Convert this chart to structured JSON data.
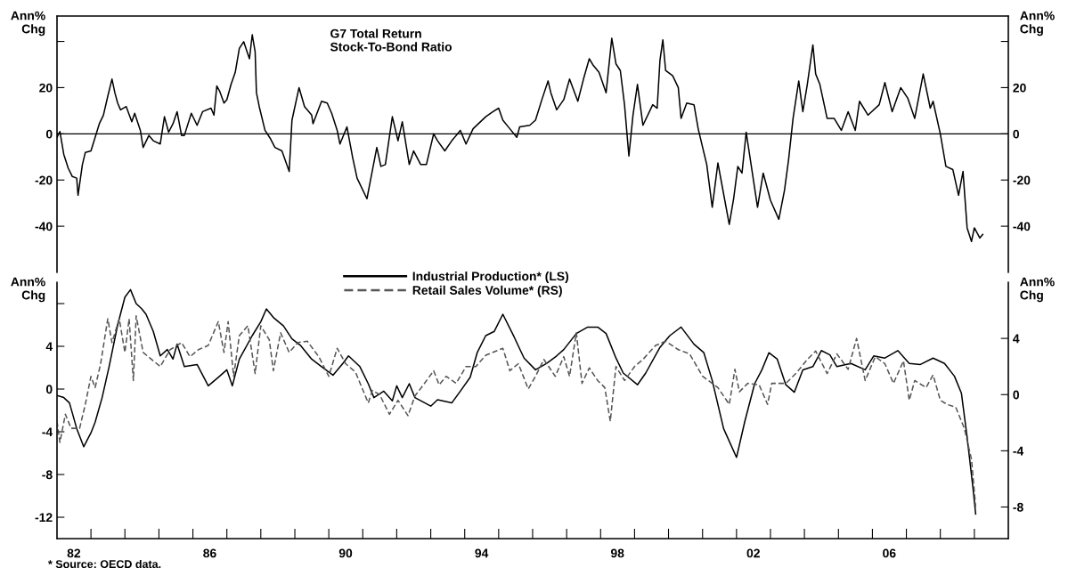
{
  "chart_data": [
    {
      "type": "line",
      "title": "G7 Total Return\nStock-To-Bond Ratio",
      "ylabel": "Ann%\nChg",
      "y2label": "Ann%\nChg",
      "tick_labels": "y",
      "xlim": [
        "1982-01-01",
        "2010-01-01"
      ],
      "ylim": [
        -60,
        51
      ],
      "yticks": [
        -40,
        -20,
        0,
        20,
        {
          "value": 40,
          "label": null
        }
      ],
      "y2lim": [
        -60,
        51
      ],
      "y2ticks": [
        -40,
        -20,
        0,
        20,
        {
          "value": 40,
          "label": null
        }
      ],
      "ref_lines": [
        {
          "axis": "y",
          "value": 0,
          "label": null,
          "color": "#000000"
        }
      ],
      "series": [
        {
          "color": "#000000",
          "line_style": "solid",
          "x": [
            "1982-01-01",
            "1982-02-01",
            "1982-03-15",
            "1982-05-01",
            "1982-06-15",
            "1982-08-01",
            "1982-08-15",
            "1982-10-01",
            "1982-11-01",
            "1983-01-01",
            "1983-02-15",
            "1983-04-01",
            "1983-05-15",
            "1983-07-01",
            "1983-08-15",
            "1983-09-15",
            "1983-10-15",
            "1983-11-15",
            "1984-01-15",
            "1984-03-15",
            "1984-04-15",
            "1984-06-15",
            "1984-07-15",
            "1984-09-15",
            "1984-11-01",
            "1985-01-15",
            "1985-03-01",
            "1985-04-15",
            "1985-06-01",
            "1985-07-15",
            "1985-09-01",
            "1985-10-01",
            "1985-12-15",
            "1986-02-15",
            "1986-04-15",
            "1986-07-15",
            "1986-08-15",
            "1986-09-15",
            "1986-10-15",
            "1986-12-01",
            "1987-01-01",
            "1987-02-15",
            "1987-04-01",
            "1987-05-15",
            "1987-07-01",
            "1987-08-01",
            "1987-09-01",
            "1987-10-01",
            "1987-11-01",
            "1987-11-15",
            "1987-12-15",
            "1988-02-15",
            "1988-04-15",
            "1988-06-01",
            "1988-08-15",
            "1988-11-01",
            "1988-12-01",
            "1989-02-15",
            "1989-04-15",
            "1989-07-01",
            "1989-07-15",
            "1989-10-15",
            "1989-12-15",
            "1990-02-01",
            "1990-04-01",
            "1990-05-01",
            "1990-07-15",
            "1990-09-15",
            "1990-11-01",
            "1991-02-15",
            "1991-03-15",
            "1991-06-01",
            "1991-07-15",
            "1991-09-01",
            "1991-11-15",
            "1992-01-15",
            "1992-03-01",
            "1992-05-15",
            "1992-07-01",
            "1992-09-15",
            "1992-11-15",
            "1993-02-01",
            "1993-03-15",
            "1993-06-01",
            "1993-08-15",
            "1993-11-15",
            "1994-01-15",
            "1994-04-01",
            "1994-08-15",
            "1994-11-01",
            "1995-01-01",
            "1995-02-15",
            "1995-05-01",
            "1995-07-15",
            "1995-08-15",
            "1995-12-01",
            "1996-02-01",
            "1996-04-15",
            "1996-06-15",
            "1996-07-15",
            "1996-09-15",
            "1996-12-01",
            "1997-02-01",
            "1997-05-01",
            "1997-07-01",
            "1997-09-01",
            "1997-10-15",
            "1997-12-15",
            "1998-03-01",
            "1998-05-01",
            "1998-06-15",
            "1998-08-01",
            "1998-09-15",
            "1998-11-01",
            "1998-12-15",
            "1999-02-01",
            "1999-04-01",
            "1999-07-15",
            "1999-09-01",
            "1999-10-01",
            "1999-11-01",
            "1999-12-01",
            "2000-02-15",
            "2000-04-15",
            "2000-05-15",
            "2000-07-15",
            "2000-10-01",
            "2000-11-15",
            "2001-01-15",
            "2001-02-15",
            "2001-04-15",
            "2001-06-15",
            "2001-08-01",
            "2001-10-15",
            "2001-12-01",
            "2002-01-15",
            "2002-03-01",
            "2002-04-15",
            "2002-06-15",
            "2002-08-15",
            "2002-10-15",
            "2003-01-01",
            "2003-04-01",
            "2003-06-01",
            "2003-07-15",
            "2003-09-01",
            "2003-11-01",
            "2003-12-15",
            "2004-02-01",
            "2004-04-01",
            "2004-05-01",
            "2004-06-15",
            "2004-09-01",
            "2004-11-15",
            "2005-02-01",
            "2005-04-15",
            "2005-07-01",
            "2005-08-15",
            "2005-11-15",
            "2006-03-15",
            "2006-05-15",
            "2006-08-01",
            "2006-11-01",
            "2007-01-15",
            "2007-04-01",
            "2007-07-01",
            "2007-09-15",
            "2007-10-15",
            "2008-01-01",
            "2008-03-01",
            "2008-05-15",
            "2008-07-15",
            "2008-09-01",
            "2008-10-15",
            "2008-12-01",
            "2009-01-01",
            "2009-03-01",
            "2009-04-01"
          ],
          "values": [
            -1.5,
            1.0,
            -8.9,
            -14.8,
            -18.5,
            -19.2,
            -26.6,
            -13.3,
            -8.1,
            -7.4,
            -1.5,
            4.4,
            8.1,
            16.3,
            23.7,
            17.8,
            13.3,
            10.4,
            11.8,
            5.2,
            8.9,
            1.5,
            -5.9,
            -0.7,
            -3.0,
            -4.4,
            7.4,
            0.7,
            4.4,
            9.6,
            -0.7,
            -0.7,
            8.9,
            3.7,
            9.6,
            11.1,
            8.1,
            20.7,
            18.5,
            13.3,
            14.8,
            21.4,
            26.6,
            37.0,
            39.9,
            36.2,
            32.5,
            42.9,
            35.5,
            17.8,
            11.8,
            1.5,
            -2.2,
            -5.9,
            -7.4,
            -16.3,
            5.9,
            20.0,
            11.8,
            8.1,
            4.4,
            14.1,
            13.3,
            8.9,
            1.5,
            -4.4,
            3.0,
            -10.4,
            -19.2,
            -28.1,
            -22.2,
            -5.9,
            -14.1,
            -13.3,
            7.4,
            -3.0,
            5.2,
            -13.3,
            -7.4,
            -13.3,
            -13.3,
            0,
            -3.0,
            -7.4,
            -3.0,
            1.5,
            -4.4,
            2.2,
            7.4,
            9.6,
            11.1,
            5.9,
            2.2,
            -1.5,
            3.0,
            3.7,
            5.9,
            15.5,
            22.9,
            17.8,
            10.4,
            14.8,
            23.7,
            14.1,
            23.7,
            32.5,
            29.6,
            26.6,
            17.8,
            41.4,
            30.3,
            27.4,
            12.6,
            -9.6,
            8.1,
            21.4,
            3.7,
            12.6,
            11.1,
            31.8,
            40.7,
            27.4,
            25.1,
            20.0,
            6.7,
            13.3,
            12.6,
            2.2,
            -8.1,
            -13.3,
            -31.8,
            -12.6,
            -22.9,
            -39.2,
            -28.1,
            -14.1,
            -17.0,
            0.7,
            -15.5,
            -31.8,
            -17.0,
            -28.8,
            -37.0,
            -24.4,
            -11.1,
            6.7,
            22.9,
            9.6,
            21.4,
            38.5,
            25.9,
            21.4,
            6.7,
            6.7,
            1.5,
            9.6,
            1.5,
            14.1,
            8.1,
            12.6,
            22.2,
            9.6,
            20.0,
            15.5,
            6.7,
            25.9,
            11.1,
            14.1,
            0,
            -14.1,
            -15.5,
            -26.6,
            -16.3,
            -40.7,
            -46.6,
            -40.7,
            -45.1,
            -43.6
          ]
        }
      ]
    },
    {
      "type": "line",
      "ylabel": "Ann%\nChg",
      "y2label": "Ann%\nChg",
      "legend": "top",
      "xlim": [
        "1982-01-01",
        "2010-01-01"
      ],
      "ylim": [
        -14,
        10
      ],
      "yticks": [
        -12,
        -8,
        -4,
        0,
        4,
        {
          "value": 8,
          "label": null
        }
      ],
      "y2lim": [
        -10.25,
        8
      ],
      "y2ticks": [
        -8,
        -4,
        0,
        4
      ],
      "xticks": [
        {
          "value": "1982-07-01",
          "label": "82"
        },
        {
          "value": "1986-07-01",
          "label": "86"
        },
        {
          "value": "1990-07-01",
          "label": "90"
        },
        {
          "value": "1994-07-01",
          "label": "94"
        },
        {
          "value": "1998-07-01",
          "label": "98"
        },
        {
          "value": "2002-07-01",
          "label": "02"
        },
        {
          "value": "2006-07-01",
          "label": "06"
        },
        {
          "value": "1983-01-01",
          "label": null
        },
        {
          "value": "1984-01-01",
          "label": null
        },
        {
          "value": "1985-01-01",
          "label": null
        },
        {
          "value": "1986-01-01",
          "label": null
        },
        {
          "value": "1987-01-01",
          "label": null
        },
        {
          "value": "1988-01-01",
          "label": null
        },
        {
          "value": "1989-01-01",
          "label": null
        },
        {
          "value": "1990-01-01",
          "label": null
        },
        {
          "value": "1991-01-01",
          "label": null
        },
        {
          "value": "1992-01-01",
          "label": null
        },
        {
          "value": "1993-01-01",
          "label": null
        },
        {
          "value": "1994-01-01",
          "label": null
        },
        {
          "value": "1995-01-01",
          "label": null
        },
        {
          "value": "1996-01-01",
          "label": null
        },
        {
          "value": "1997-01-01",
          "label": null
        },
        {
          "value": "1998-01-01",
          "label": null
        },
        {
          "value": "1999-01-01",
          "label": null
        },
        {
          "value": "2000-01-01",
          "label": null
        },
        {
          "value": "2001-01-01",
          "label": null
        },
        {
          "value": "2002-01-01",
          "label": null
        },
        {
          "value": "2003-01-01",
          "label": null
        },
        {
          "value": "2004-01-01",
          "label": null
        },
        {
          "value": "2005-01-01",
          "label": null
        },
        {
          "value": "2006-01-01",
          "label": null
        },
        {
          "value": "2007-01-01",
          "label": null
        },
        {
          "value": "2008-01-01",
          "label": null
        },
        {
          "value": "2009-01-01",
          "label": null
        }
      ],
      "annotations": [
        "* Source: OECD data."
      ],
      "series": [
        {
          "name": "Industrial Production* (LS)",
          "color": "#000000",
          "line_style": "solid",
          "x": [
            "1982-01-01",
            "1982-03-15",
            "1982-05-15",
            "1982-08-01",
            "1982-10-15",
            "1983-01-01",
            "1983-02-15",
            "1983-05-01",
            "1983-07-15",
            "1983-10-15",
            "1984-01-01",
            "1984-03-01",
            "1984-05-01",
            "1984-07-01",
            "1984-08-15",
            "1984-11-01",
            "1985-01-15",
            "1985-04-01",
            "1985-06-01",
            "1985-07-15",
            "1985-10-01",
            "1986-02-15",
            "1986-06-15",
            "1986-10-01",
            "1987-01-01",
            "1987-03-01",
            "1987-05-15",
            "1987-10-01",
            "1988-01-01",
            "1988-03-01",
            "1988-05-15",
            "1988-09-01",
            "1988-12-01",
            "1989-03-01",
            "1989-07-01",
            "1989-10-15",
            "1990-02-15",
            "1990-06-01",
            "1990-08-01",
            "1990-12-01",
            "1991-03-01",
            "1991-05-01",
            "1991-08-15",
            "1991-11-15",
            "1992-01-01",
            "1992-03-01",
            "1992-05-15",
            "1992-07-15",
            "1993-01-01",
            "1993-03-15",
            "1993-08-15",
            "1993-11-15",
            "1994-03-01",
            "1994-05-15",
            "1994-08-15",
            "1994-11-15",
            "1995-02-15",
            "1995-06-15",
            "1995-10-01",
            "1996-02-01",
            "1996-06-01",
            "1996-09-15",
            "1996-12-01",
            "1997-04-15",
            "1997-08-15",
            "1997-12-01",
            "1998-03-01",
            "1998-06-15",
            "1998-09-01",
            "1999-02-01",
            "1999-05-01",
            "1999-10-01",
            "2000-01-15",
            "2000-05-15",
            "2000-10-01",
            "2001-01-15",
            "2001-04-15",
            "2001-08-15",
            "2002-01-01",
            "2002-04-01",
            "2002-07-15",
            "2002-10-01",
            "2002-12-15",
            "2003-03-15",
            "2003-06-15",
            "2003-09-15",
            "2003-12-15",
            "2004-04-01",
            "2004-07-01",
            "2004-10-01",
            "2004-12-15",
            "2005-05-15",
            "2005-10-15",
            "2006-01-15",
            "2006-05-15",
            "2006-10-01",
            "2007-02-01",
            "2007-06-01",
            "2007-10-15",
            "2008-02-15",
            "2008-06-01",
            "2008-08-15",
            "2008-10-15",
            "2008-12-15",
            "2009-01-15"
          ],
          "values": [
            -0.6,
            -0.8,
            -1.3,
            -3.7,
            -5.4,
            -4.1,
            -3.1,
            -0.8,
            2.1,
            6.0,
            8.6,
            9.3,
            8.0,
            7.5,
            7.0,
            5.4,
            3.1,
            3.7,
            2.8,
            4.2,
            2.1,
            2.3,
            0.3,
            1.1,
            1.8,
            0.3,
            2.8,
            5.0,
            6.3,
            7.5,
            6.7,
            5.9,
            4.7,
            4.1,
            2.8,
            2.1,
            1.3,
            2.4,
            3.1,
            2.1,
            0.5,
            -0.8,
            -0.2,
            -1.1,
            0.3,
            -0.8,
            0.5,
            -0.8,
            -1.6,
            -1.0,
            -1.3,
            -0.2,
            1.1,
            3.4,
            5.0,
            5.4,
            7.0,
            4.9,
            2.9,
            1.8,
            2.4,
            3.1,
            3.7,
            5.2,
            5.8,
            5.8,
            5.2,
            2.9,
            1.5,
            0.4,
            1.5,
            3.9,
            5.0,
            5.8,
            4.2,
            3.4,
            0.8,
            -3.7,
            -6.4,
            -3.0,
            0.5,
            1.8,
            3.4,
            2.8,
            0.4,
            -0.3,
            1.8,
            2.1,
            3.6,
            3.2,
            2.1,
            2.4,
            1.8,
            3.1,
            2.9,
            3.6,
            2.4,
            2.3,
            2.9,
            2.4,
            1.2,
            -0.4,
            -4.5,
            -9.1,
            -11.7
          ]
        },
        {
          "name": "Retail Sales Volume* (RS)",
          "color": "#555555",
          "line_style": "dashed",
          "axis": "y2",
          "x": [
            "1982-01-01",
            "1982-02-01",
            "1982-04-01",
            "1982-06-01",
            "1982-09-01",
            "1982-11-01",
            "1983-01-01",
            "1983-02-15",
            "1983-04-15",
            "1983-07-01",
            "1983-08-15",
            "1983-11-01",
            "1984-01-01",
            "1984-02-15",
            "1984-04-01",
            "1984-05-01",
            "1984-07-15",
            "1984-10-15",
            "1985-01-15",
            "1985-05-01",
            "1985-09-01",
            "1985-12-01",
            "1986-03-01",
            "1986-06-15",
            "1986-10-01",
            "1986-12-01",
            "1987-01-15",
            "1987-03-15",
            "1987-05-15",
            "1987-08-15",
            "1987-11-01",
            "1988-01-01",
            "1988-04-01",
            "1988-05-15",
            "1988-08-01",
            "1988-11-01",
            "1989-02-01",
            "1989-05-15",
            "1989-09-15",
            "1990-01-01",
            "1990-04-01",
            "1990-07-01",
            "1990-10-15",
            "1991-03-01",
            "1991-04-15",
            "1991-07-01",
            "1991-10-15",
            "1992-01-15",
            "1992-05-01",
            "1992-07-15",
            "1992-10-15",
            "1993-02-01",
            "1993-04-01",
            "1993-06-15",
            "1993-10-01",
            "1994-01-15",
            "1994-05-01",
            "1994-08-15",
            "1995-02-15",
            "1995-05-01",
            "1995-08-01",
            "1995-11-15",
            "1996-02-01",
            "1996-05-01",
            "1996-09-01",
            "1996-12-01",
            "1997-02-01",
            "1997-04-15",
            "1997-06-15",
            "1997-09-01",
            "1997-12-01",
            "1998-02-15",
            "1998-04-15",
            "1998-06-15",
            "1998-09-15",
            "1999-01-01",
            "1999-04-01",
            "1999-08-15",
            "1999-12-01",
            "2000-04-15",
            "2000-08-15",
            "2001-01-01",
            "2001-06-15",
            "2001-10-15",
            "2001-12-15",
            "2002-02-01",
            "2002-05-01",
            "2002-09-01",
            "2002-12-01",
            "2003-01-15",
            "2003-06-15",
            "2003-10-01",
            "2004-02-01",
            "2004-05-01",
            "2004-09-01",
            "2004-12-15",
            "2005-04-15",
            "2005-07-15",
            "2005-10-15",
            "2006-02-01",
            "2006-05-15",
            "2006-08-15",
            "2006-12-01",
            "2007-02-01",
            "2007-04-01",
            "2007-08-01",
            "2007-10-15",
            "2008-01-01",
            "2008-03-15",
            "2008-06-15",
            "2008-09-15",
            "2008-12-01",
            "2009-01-15"
          ],
          "values": [
            -1.9,
            -3.4,
            -1.4,
            -2.4,
            -2.4,
            -0.7,
            1.3,
            0.5,
            2.2,
            5.4,
            3.7,
            5.4,
            3.0,
            5.4,
            1.0,
            5.6,
            3.0,
            2.5,
            2.0,
            3.2,
            3.7,
            2.7,
            3.2,
            3.5,
            5.2,
            3.0,
            5.2,
            1.3,
            4.2,
            4.9,
            1.5,
            4.9,
            3.9,
            1.7,
            4.4,
            3.0,
            3.7,
            3.8,
            2.7,
            1.3,
            3.3,
            2.2,
            1.6,
            -0.6,
            0.3,
            0.0,
            -1.4,
            -0.4,
            -1.5,
            -0.1,
            0.7,
            1.7,
            0.7,
            1.3,
            0.8,
            2.0,
            2.0,
            2.8,
            3.3,
            1.7,
            2.2,
            0.4,
            1.3,
            2.5,
            1.3,
            2.7,
            1.3,
            4.4,
            0.8,
            1.9,
            1.0,
            0.5,
            -1.9,
            2.0,
            1.0,
            2.0,
            2.5,
            3.5,
            3.8,
            3.2,
            2.9,
            1.3,
            0.5,
            -0.7,
            1.8,
            0.2,
            0.8,
            0.7,
            -0.7,
            0.8,
            0.8,
            1.5,
            2.5,
            3.1,
            1.5,
            2.9,
            1.8,
            4.0,
            1.0,
            2.7,
            2.2,
            0.8,
            2.4,
            -0.4,
            1.0,
            0.5,
            1.4,
            -0.4,
            -0.7,
            -0.9,
            -2.4,
            -4.6,
            -8.0
          ]
        }
      ]
    }
  ]
}
